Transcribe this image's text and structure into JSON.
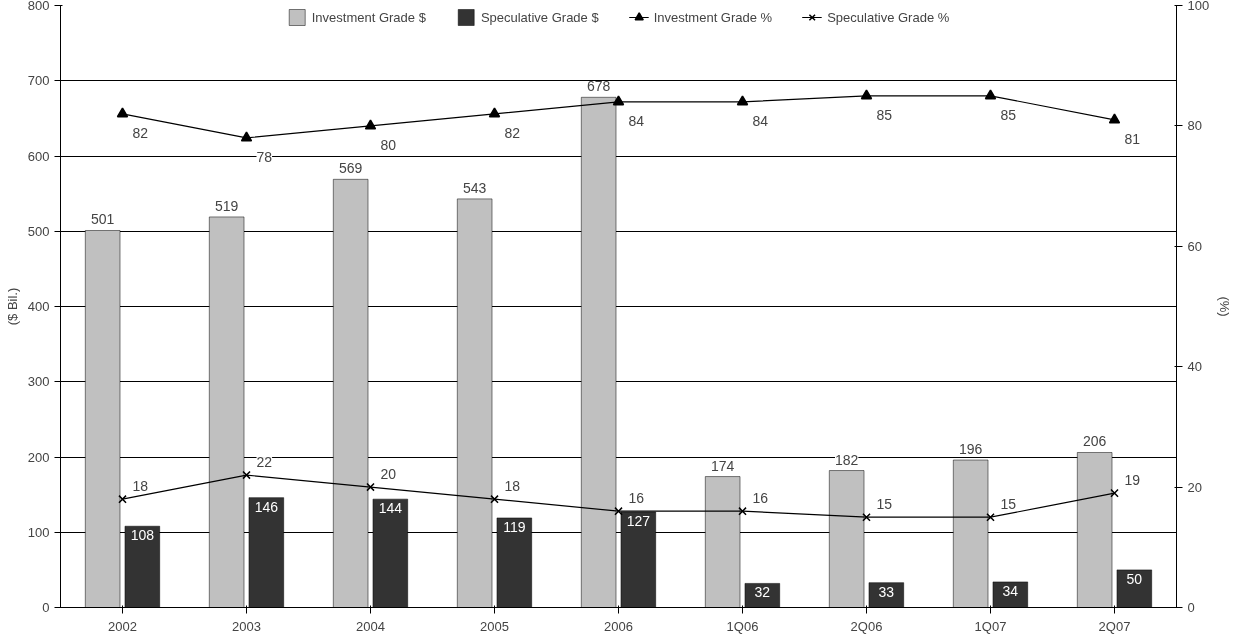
{
  "chart_data": {
    "type": "bar",
    "categories": [
      "2002",
      "2003",
      "2004",
      "2005",
      "2006",
      "1Q06",
      "2Q06",
      "1Q07",
      "2Q07"
    ],
    "ylabel": "($ Bil.)",
    "y2label": "(%)",
    "ylim": [
      0,
      800
    ],
    "yticks": [
      0,
      100,
      200,
      300,
      400,
      500,
      600,
      700,
      800
    ],
    "y2lim": [
      0,
      100
    ],
    "y2ticks": [
      0,
      20,
      40,
      60,
      80,
      100
    ],
    "grid": "y",
    "legend": "top",
    "data_labels": true,
    "series": [
      {
        "name": "Investment Grade $",
        "color": "#c0c0c0",
        "values": [
          501,
          519,
          569,
          543,
          678,
          174,
          182,
          196,
          206
        ]
      },
      {
        "name": "Speculative Grade $",
        "color": "#333333",
        "values": [
          108,
          146,
          144,
          119,
          127,
          32,
          33,
          34,
          50
        ]
      },
      {
        "name": "Investment Grade %",
        "type": "line",
        "axis": "y2",
        "color": "#000000",
        "marker": "triangle",
        "values": [
          82,
          78,
          80,
          82,
          84,
          84,
          85,
          85,
          81
        ]
      },
      {
        "name": "Speculative Grade %",
        "type": "line",
        "axis": "y2",
        "color": "#000000",
        "marker": "cross",
        "values": [
          18,
          22,
          20,
          18,
          16,
          16,
          15,
          15,
          19
        ]
      }
    ]
  }
}
